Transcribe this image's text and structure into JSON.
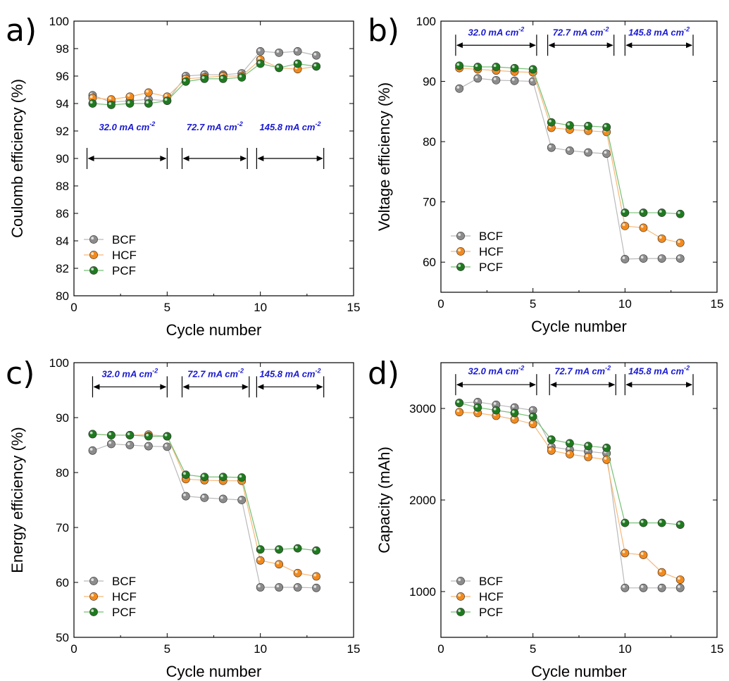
{
  "figure": {
    "legend_labels": [
      "BCF",
      "HCF",
      "PCF"
    ],
    "series_colors": {
      "BCF": "#8c8c8c",
      "HCF": "#f28a1c",
      "PCF": "#1f7a1f"
    },
    "line_colors": {
      "BCF": "#b9b9b9",
      "HCF": "#f7b877",
      "PCF": "#75c075"
    }
  },
  "chart_data": [
    {
      "type": "line",
      "panel_label": "a)",
      "xlabel": "Cycle number",
      "ylabel": "Coulomb efficiency (%)",
      "xlim": [
        0,
        15
      ],
      "ylim": [
        80,
        100
      ],
      "x_ticks": [
        0,
        5,
        10,
        15
      ],
      "y_ticks": [
        80,
        82,
        84,
        86,
        88,
        90,
        92,
        94,
        96,
        98,
        100
      ],
      "legend_position": "bottom-left",
      "x": [
        1,
        2,
        3,
        4,
        5,
        6,
        7,
        8,
        9,
        10,
        11,
        12,
        13
      ],
      "series": [
        {
          "name": "BCF",
          "values": [
            94.6,
            94.1,
            94.2,
            94.3,
            94.2,
            96.0,
            96.1,
            96.1,
            96.2,
            97.8,
            97.7,
            97.8,
            97.5
          ]
        },
        {
          "name": "HCF",
          "values": [
            94.4,
            94.3,
            94.5,
            94.8,
            94.5,
            95.8,
            95.9,
            96.0,
            96.0,
            97.2,
            96.6,
            96.5,
            96.7
          ]
        },
        {
          "name": "PCF",
          "values": [
            94.0,
            93.9,
            94.0,
            94.0,
            94.2,
            95.6,
            95.8,
            95.8,
            95.9,
            96.9,
            96.6,
            96.9,
            96.7
          ]
        }
      ],
      "annotations": [
        {
          "text": "32.0 mA cm",
          "sup": "-2",
          "x_start": 0.7,
          "x_end": 5.0,
          "y": 90.0,
          "label_y": 92.3
        },
        {
          "text": "72.7 mA cm",
          "sup": "-2",
          "x_start": 5.8,
          "x_end": 9.3,
          "y": 90.0,
          "label_y": 92.3
        },
        {
          "text": "145.8 mA cm",
          "sup": "-2",
          "x_start": 9.8,
          "x_end": 13.4,
          "y": 90.0,
          "label_y": 92.3
        }
      ]
    },
    {
      "type": "line",
      "panel_label": "b)",
      "xlabel": "Cycle number",
      "ylabel": "Voltage efficiency (%)",
      "xlim": [
        0,
        15
      ],
      "ylim": [
        55,
        100
      ],
      "x_ticks": [
        0,
        5,
        10,
        15
      ],
      "y_ticks": [
        60,
        70,
        80,
        90,
        100
      ],
      "legend_position": "bottom-left",
      "x": [
        1,
        2,
        3,
        4,
        5,
        6,
        7,
        8,
        9,
        10,
        11,
        12,
        13
      ],
      "series": [
        {
          "name": "BCF",
          "values": [
            88.8,
            90.5,
            90.2,
            90.1,
            90.0,
            79.0,
            78.5,
            78.2,
            78.0,
            60.5,
            60.6,
            60.6,
            60.6
          ]
        },
        {
          "name": "HCF",
          "values": [
            92.2,
            92.0,
            91.8,
            91.6,
            91.5,
            82.3,
            82.0,
            81.8,
            81.6,
            66.0,
            65.7,
            63.9,
            63.2
          ]
        },
        {
          "name": "PCF",
          "values": [
            92.6,
            92.4,
            92.4,
            92.2,
            92.0,
            83.2,
            82.7,
            82.6,
            82.4,
            68.2,
            68.2,
            68.2,
            68.0
          ]
        }
      ],
      "annotations": [
        {
          "text": "32.0 mA cm",
          "sup": "-2",
          "x_start": 0.8,
          "x_end": 5.2,
          "y": 96.0,
          "label_y": 98.2
        },
        {
          "text": "72.7 mA cm",
          "sup": "-2",
          "x_start": 5.8,
          "x_end": 9.4,
          "y": 96.0,
          "label_y": 98.2
        },
        {
          "text": "145.8 mA cm",
          "sup": "-2",
          "x_start": 10.0,
          "x_end": 13.7,
          "y": 96.0,
          "label_y": 98.2
        }
      ]
    },
    {
      "type": "line",
      "panel_label": "c)",
      "xlabel": "Cycle number",
      "ylabel": "Energy efficiency (%)",
      "xlim": [
        0,
        15
      ],
      "ylim": [
        50,
        100
      ],
      "x_ticks": [
        0,
        5,
        10,
        15
      ],
      "y_ticks": [
        50,
        60,
        70,
        80,
        90,
        100
      ],
      "legend_position": "bottom-left",
      "x": [
        1,
        2,
        3,
        4,
        5,
        6,
        7,
        8,
        9,
        10,
        11,
        12,
        13
      ],
      "series": [
        {
          "name": "BCF",
          "values": [
            84.0,
            85.2,
            85.0,
            84.8,
            84.7,
            75.7,
            75.4,
            75.2,
            75.0,
            59.1,
            59.1,
            59.1,
            59.0
          ]
        },
        {
          "name": "HCF",
          "values": [
            87.0,
            86.8,
            86.8,
            86.9,
            86.6,
            78.8,
            78.6,
            78.5,
            78.5,
            64.0,
            63.3,
            61.7,
            61.1
          ]
        },
        {
          "name": "PCF",
          "values": [
            87.0,
            86.8,
            86.8,
            86.6,
            86.6,
            79.6,
            79.2,
            79.2,
            79.1,
            66.0,
            66.0,
            66.2,
            65.8
          ]
        }
      ],
      "annotations": [
        {
          "text": "32.0 mA cm",
          "sup": "-2",
          "x_start": 1.0,
          "x_end": 5.0,
          "y": 95.6,
          "label_y": 98.0
        },
        {
          "text": "72.7 mA cm",
          "sup": "-2",
          "x_start": 5.8,
          "x_end": 9.4,
          "y": 95.6,
          "label_y": 98.0
        },
        {
          "text": "145.8 mA cm",
          "sup": "-2",
          "x_start": 9.8,
          "x_end": 13.4,
          "y": 95.6,
          "label_y": 98.0
        }
      ]
    },
    {
      "type": "line",
      "panel_label": "d)",
      "xlabel": "Cycle number",
      "ylabel": "Capacity (mAh)",
      "xlim": [
        0,
        15
      ],
      "ylim": [
        500,
        3500
      ],
      "x_ticks": [
        0,
        5,
        10,
        15
      ],
      "y_ticks": [
        1000,
        2000,
        3000
      ],
      "legend_position": "bottom-left",
      "x": [
        1,
        2,
        3,
        4,
        5,
        6,
        7,
        8,
        9,
        10,
        11,
        12,
        13
      ],
      "series": [
        {
          "name": "BCF",
          "values": [
            3060,
            3070,
            3040,
            3010,
            2980,
            2580,
            2550,
            2530,
            2510,
            1040,
            1040,
            1040,
            1040
          ]
        },
        {
          "name": "HCF",
          "values": [
            2960,
            2950,
            2920,
            2880,
            2830,
            2540,
            2500,
            2470,
            2440,
            1420,
            1400,
            1210,
            1130
          ]
        },
        {
          "name": "PCF",
          "values": [
            3060,
            3010,
            2980,
            2950,
            2910,
            2660,
            2620,
            2590,
            2570,
            1750,
            1750,
            1750,
            1730
          ]
        }
      ],
      "annotations": [
        {
          "text": "32.0 mA cm",
          "sup": "-2",
          "x_start": 0.8,
          "x_end": 5.2,
          "y": 3260,
          "label_y": 3410
        },
        {
          "text": "72.7 mA cm",
          "sup": "-2",
          "x_start": 5.9,
          "x_end": 9.5,
          "y": 3260,
          "label_y": 3410
        },
        {
          "text": "145.8 mA cm",
          "sup": "-2",
          "x_start": 10.0,
          "x_end": 13.7,
          "y": 3260,
          "label_y": 3410
        }
      ]
    }
  ]
}
